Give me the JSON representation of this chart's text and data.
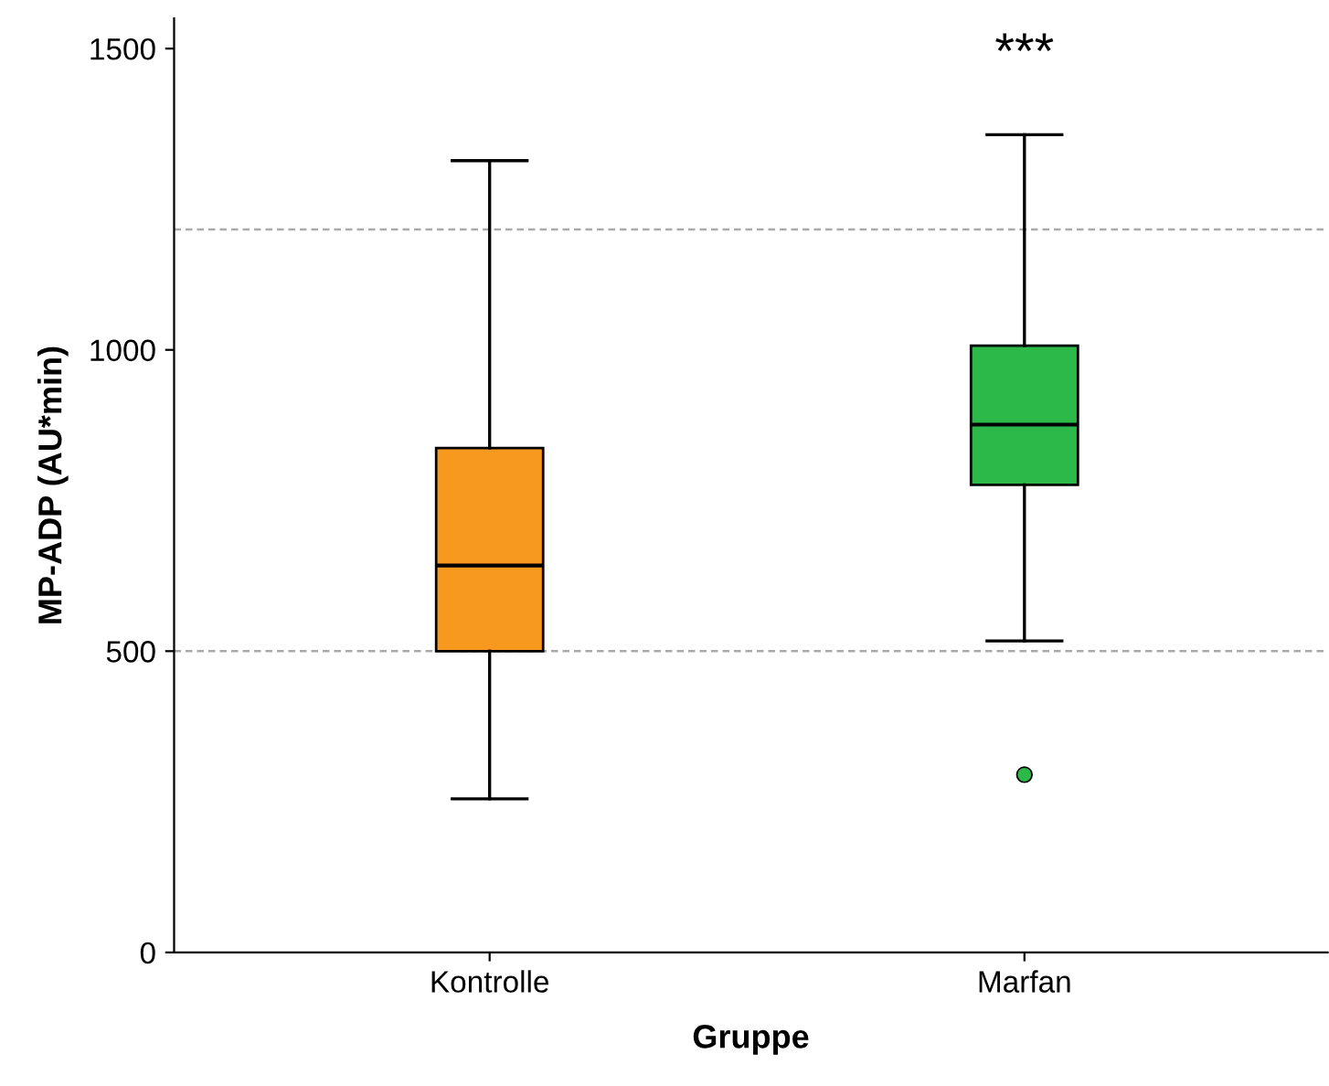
{
  "chart_data": {
    "type": "box",
    "xlabel": "Gruppe",
    "ylabel": "MP-ADP (AU*min)",
    "categories": [
      "Kontrolle",
      "Marfan"
    ],
    "boxes": [
      {
        "low": 255,
        "q1": 500,
        "median": 642,
        "q3": 837,
        "high": 1314
      },
      {
        "low": 517,
        "q1": 776,
        "median": 876,
        "q3": 1007,
        "high": 1357,
        "outliers": [
          295
        ]
      }
    ],
    "colors": [
      "#f7991f",
      "#2db84a"
    ],
    "ylim": [
      0,
      1550
    ],
    "yticks": [
      0,
      500,
      1000,
      1500
    ],
    "ref_lines": [
      {
        "axis": "y",
        "value": 1200,
        "line_style": "dashed",
        "color": "#aaaaaa"
      },
      {
        "axis": "y",
        "value": 500,
        "line_style": "dashed",
        "color": "#aaaaaa"
      }
    ],
    "annotations": [
      "***"
    ],
    "grid": false
  }
}
